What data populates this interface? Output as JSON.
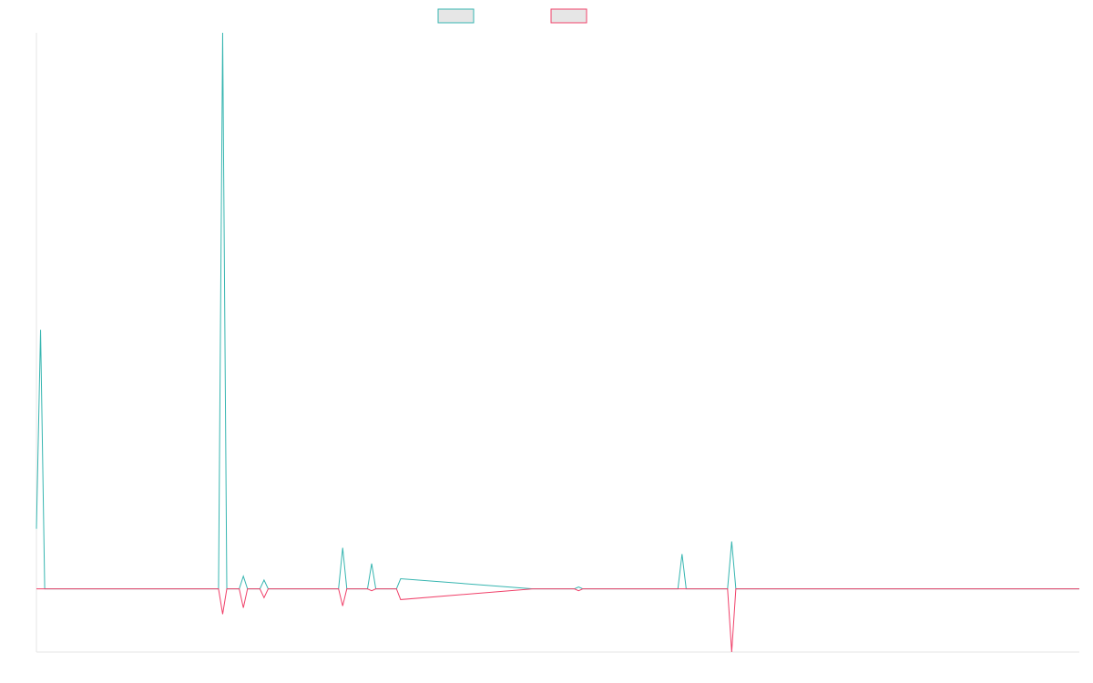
{
  "chart_data": {
    "type": "line",
    "title": "",
    "xlabel": "",
    "ylabel": "",
    "grid": false,
    "legend_position": "top-center",
    "x": [
      0,
      1,
      2,
      44,
      45,
      46,
      47,
      48,
      49,
      50,
      51,
      52,
      53,
      54,
      55,
      56,
      70,
      71,
      72,
      73,
      74,
      75,
      76,
      77,
      78,
      80,
      81,
      82,
      83,
      84,
      85,
      86,
      87,
      88,
      120,
      130,
      131,
      132,
      133,
      134,
      135,
      136,
      155,
      156,
      157,
      158,
      166,
      167,
      168,
      169,
      170,
      252
    ],
    "ylim": [
      -0.1,
      0.88
    ],
    "series": [
      {
        "color": "#36b5b0",
        "values": [
          0.095,
          0.41,
          0.0,
          0.0,
          0.88,
          0.0,
          0.0,
          0.0,
          0.0,
          0.02,
          0.0,
          0.0,
          0.0,
          0.0,
          0.014,
          0.0,
          0.0,
          0.0,
          0.0,
          0.0,
          0.065,
          0.0,
          0.0,
          0.0,
          0.0,
          0.0,
          0.04,
          0.0,
          0.0,
          0.0,
          0.0,
          0.0,
          0.0,
          0.016,
          0.0,
          0.0,
          0.003,
          0.0,
          0.0,
          0.0,
          0.0,
          0.0,
          0.0,
          0.055,
          0.0,
          0.0,
          0.0,
          0.0,
          0.075,
          0.0,
          0.0,
          0.0
        ]
      },
      {
        "color": "#f0416a",
        "values": [
          0.0,
          0.0,
          0.0,
          0.0,
          -0.04,
          0.0,
          0.0,
          0.0,
          0.0,
          -0.03,
          0.0,
          0.0,
          0.0,
          0.0,
          -0.014,
          0.0,
          0.0,
          0.0,
          0.0,
          0.0,
          -0.027,
          0.0,
          0.0,
          0.0,
          0.0,
          0.0,
          -0.003,
          0.0,
          0.0,
          0.0,
          0.0,
          0.0,
          0.0,
          -0.017,
          0.0,
          0.0,
          -0.003,
          0.0,
          0.0,
          0.0,
          0.0,
          0.0,
          0.0,
          0.0,
          0.0,
          0.0,
          0.0,
          0.0,
          -0.1,
          0.0,
          0.0,
          0.0
        ]
      }
    ]
  }
}
